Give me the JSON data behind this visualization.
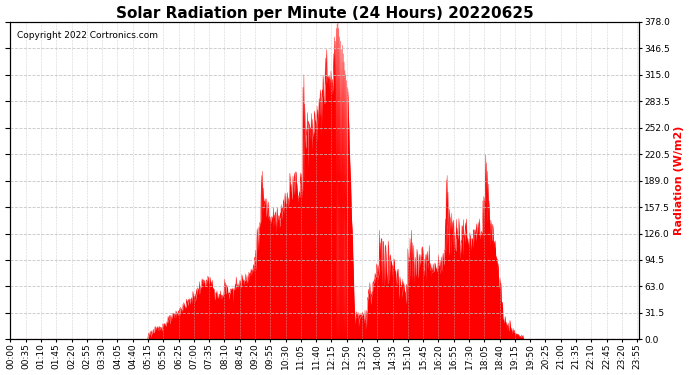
{
  "title": "Solar Radiation per Minute (24 Hours) 20220625",
  "ylabel": "Radiation (W/m2)",
  "ylabel_color": "#ff0000",
  "copyright_text": "Copyright 2022 Cortronics.com",
  "fill_color": "#ff0000",
  "line_color": "#ff0000",
  "background_color": "#ffffff",
  "grid_color": "#c0c0c0",
  "ylim": [
    0.0,
    378.0
  ],
  "yticks": [
    0.0,
    31.5,
    63.0,
    94.5,
    126.0,
    157.5,
    189.0,
    220.5,
    252.0,
    283.5,
    315.0,
    346.5,
    378.0
  ],
  "title_fontsize": 11,
  "axis_fontsize": 6.5,
  "copyright_fontsize": 6.5
}
